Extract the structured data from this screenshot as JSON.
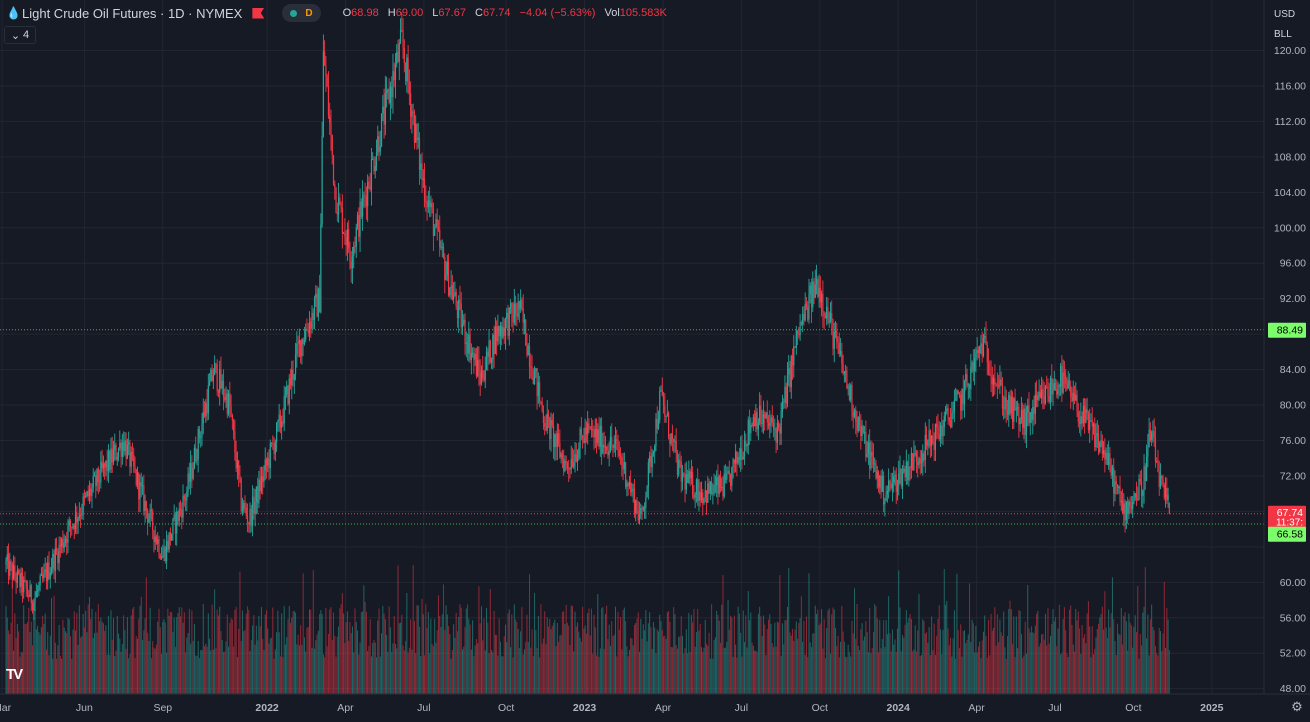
{
  "header": {
    "drop_icon": "droplet-icon",
    "title": "Light Crude Oil Futures · 1D · NYMEX",
    "interval_badge": "D",
    "ohlc": {
      "o_label": "O",
      "o": "68.98",
      "h_label": "H",
      "h": "69.00",
      "l_label": "L",
      "l": "67.67",
      "c_label": "C",
      "c": "67.74",
      "change": "−4.04 (−5.63%)",
      "vol_label": "Vol",
      "vol": "105.583K"
    },
    "indicators_count": "4"
  },
  "axis_buttons": {
    "currency": "USD",
    "unit": "BLL"
  },
  "price_labels": {
    "last_price": "67.74",
    "countdown": "11:37:",
    "upper_line": "88.49",
    "lower_line": "66.58"
  },
  "colors": {
    "background": "#161a25",
    "up": "#26a69a",
    "down": "#f23645",
    "grid": "#232632",
    "line_green": "#4caf50",
    "label_green": "#7cfc6a"
  },
  "chart_data": {
    "type": "candlestick",
    "symbol": "Light Crude Oil Futures",
    "interval": "1D",
    "exchange": "NYMEX",
    "y_axis_ticks": [
      48,
      52,
      56,
      60,
      64,
      68,
      72,
      76,
      80,
      84,
      88,
      92,
      96,
      100,
      104,
      108,
      112,
      116,
      120
    ],
    "y_axis_tick_labels": [
      "48.00",
      "52.00",
      "56.00",
      "60.00",
      "",
      "",
      "72.00",
      "76.00",
      "80.00",
      "84.00",
      "",
      "92.00",
      "96.00",
      "100.00",
      "104.00",
      "108.00",
      "112.00",
      "116.00",
      "120.00"
    ],
    "ylim": [
      47.4,
      125.7
    ],
    "x_axis_labels": [
      {
        "label": "Mar",
        "t": -0.05
      },
      {
        "label": "Jun",
        "t": 1.0
      },
      {
        "label": "Sep",
        "t": 2.0
      },
      {
        "label": "2022",
        "t": 3.33
      },
      {
        "label": "Apr",
        "t": 4.33
      },
      {
        "label": "Jul",
        "t": 5.33
      },
      {
        "label": "Oct",
        "t": 6.38
      },
      {
        "label": "2023",
        "t": 7.38
      },
      {
        "label": "Apr",
        "t": 8.38
      },
      {
        "label": "Jul",
        "t": 9.38
      },
      {
        "label": "Oct",
        "t": 10.38
      },
      {
        "label": "2024",
        "t": 11.38
      },
      {
        "label": "Apr",
        "t": 12.38
      },
      {
        "label": "Jul",
        "t": 13.38
      },
      {
        "label": "Oct",
        "t": 14.38
      },
      {
        "label": "2025",
        "t": 15.38
      }
    ],
    "price_anchors": [
      [
        0.0,
        62
      ],
      [
        0.35,
        58
      ],
      [
        0.8,
        66
      ],
      [
        1.2,
        72
      ],
      [
        1.5,
        76
      ],
      [
        1.8,
        68
      ],
      [
        2.0,
        63
      ],
      [
        2.3,
        70
      ],
      [
        2.65,
        84
      ],
      [
        2.85,
        80
      ],
      [
        3.0,
        69
      ],
      [
        3.1,
        67
      ],
      [
        3.5,
        78
      ],
      [
        3.75,
        87
      ],
      [
        4.0,
        92
      ],
      [
        4.05,
        120
      ],
      [
        4.2,
        104
      ],
      [
        4.4,
        97
      ],
      [
        4.75,
        110
      ],
      [
        5.05,
        121
      ],
      [
        5.3,
        106
      ],
      [
        5.55,
        97
      ],
      [
        5.75,
        91
      ],
      [
        6.05,
        83
      ],
      [
        6.25,
        88
      ],
      [
        6.55,
        91
      ],
      [
        6.85,
        79
      ],
      [
        7.15,
        73
      ],
      [
        7.4,
        77
      ],
      [
        7.8,
        75
      ],
      [
        8.1,
        67
      ],
      [
        8.35,
        81
      ],
      [
        8.6,
        72
      ],
      [
        8.9,
        70
      ],
      [
        9.2,
        71
      ],
      [
        9.55,
        79
      ],
      [
        9.85,
        77
      ],
      [
        10.1,
        88
      ],
      [
        10.35,
        94
      ],
      [
        10.55,
        88
      ],
      [
        10.9,
        77
      ],
      [
        11.2,
        70
      ],
      [
        11.5,
        73
      ],
      [
        11.9,
        77
      ],
      [
        12.2,
        81
      ],
      [
        12.45,
        87
      ],
      [
        12.75,
        80
      ],
      [
        13.0,
        78
      ],
      [
        13.15,
        80
      ],
      [
        13.45,
        83
      ],
      [
        13.7,
        79
      ],
      [
        14.0,
        75
      ],
      [
        14.25,
        68
      ],
      [
        14.5,
        71
      ],
      [
        14.6,
        77
      ],
      [
        14.75,
        70
      ],
      [
        14.85,
        68
      ]
    ],
    "last_candle": {
      "open": 68.98,
      "high": 69.0,
      "low": 67.67,
      "close": 67.74,
      "change": -4.04,
      "change_pct": -5.63,
      "volume": "105.583K"
    },
    "horizontal_lines": [
      88.49,
      66.58
    ],
    "volume_bars": "shown at bottom, teal/red",
    "grid": true
  }
}
